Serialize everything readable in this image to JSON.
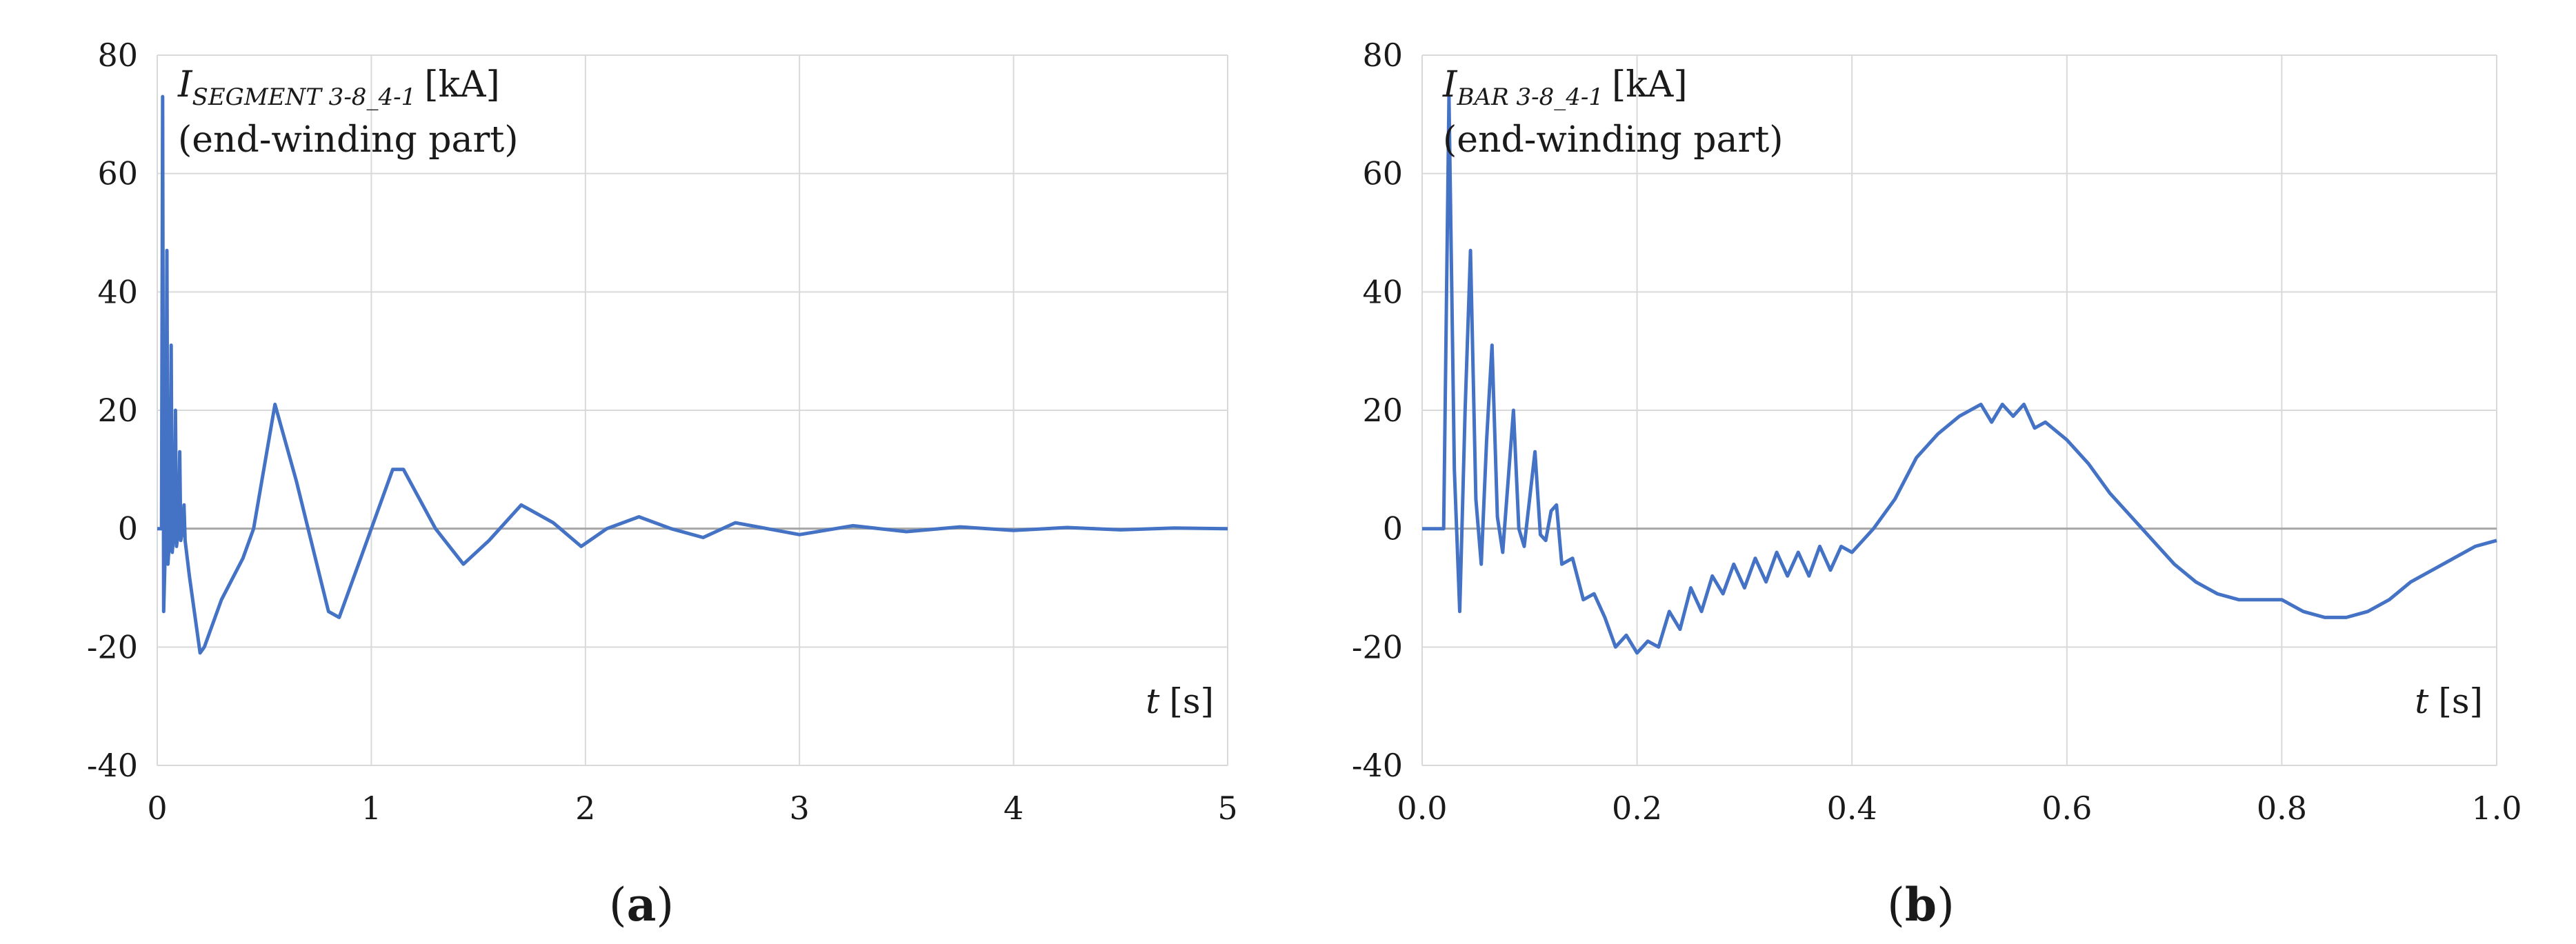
{
  "chart_data": [
    {
      "type": "line",
      "panel_label_prefix": "(",
      "panel_label_letter": "a",
      "panel_label_suffix": ")",
      "annotation": {
        "symbol": "I",
        "subscript": "SEGMENT 3-8_4-1",
        "unit": "[kA]",
        "line2": "(end-winding part)"
      },
      "xlabel": {
        "symbol": "t",
        "unit": "[s]"
      },
      "xlim": [
        0,
        5
      ],
      "ylim": [
        -40,
        80
      ],
      "xticks": [
        0,
        1,
        2,
        3,
        4,
        5
      ],
      "xtick_labels": [
        "0",
        "1",
        "2",
        "3",
        "4",
        "5"
      ],
      "yticks": [
        -40,
        -20,
        0,
        20,
        40,
        60,
        80
      ],
      "ytick_labels": [
        "-40",
        "-20",
        "0",
        "20",
        "40",
        "60",
        "80"
      ],
      "grid": true,
      "color": "#4472C4",
      "series": [
        {
          "x": [
            0,
            0.02,
            0.025,
            0.03,
            0.04,
            0.045,
            0.05,
            0.06,
            0.065,
            0.07,
            0.08,
            0.085,
            0.09,
            0.1,
            0.105,
            0.11,
            0.12,
            0.125,
            0.13,
            0.15,
            0.2,
            0.22,
            0.3,
            0.4,
            0.45,
            0.55,
            0.65,
            0.8,
            0.85,
            0.95,
            1.1,
            1.15,
            1.3,
            1.43,
            1.55,
            1.7,
            1.85,
            1.98,
            2.1,
            2.25,
            2.4,
            2.55,
            2.7,
            2.85,
            3.0,
            3.25,
            3.5,
            3.75,
            4.0,
            4.25,
            4.5,
            4.75,
            5.0
          ],
          "y": [
            0,
            0,
            73,
            -14,
            0,
            47,
            -6,
            0,
            31,
            -4,
            0,
            20,
            -3,
            0,
            13,
            -2,
            0,
            4,
            -2,
            -8,
            -21,
            -20,
            -12,
            -5,
            0,
            21,
            8,
            -14,
            -15,
            -5,
            10,
            10,
            0,
            -6,
            -2,
            4,
            1,
            -3,
            0,
            2,
            0,
            -1.5,
            1,
            0,
            -1,
            0.5,
            -0.5,
            0.3,
            -0.3,
            0.2,
            -0.2,
            0.1,
            0
          ]
        }
      ]
    },
    {
      "type": "line",
      "panel_label_prefix": "(",
      "panel_label_letter": "b",
      "panel_label_suffix": ")",
      "annotation": {
        "symbol": "I",
        "subscript": "BAR 3-8_4-1",
        "unit": "[kA]",
        "line2": "(end-winding part)"
      },
      "xlabel": {
        "symbol": "t",
        "unit": "[s]"
      },
      "xlim": [
        0,
        1.0
      ],
      "ylim": [
        -40,
        80
      ],
      "xticks": [
        0,
        0.2,
        0.4,
        0.6,
        0.8,
        1.0
      ],
      "xtick_labels": [
        "0.0",
        "0.2",
        "0.4",
        "0.6",
        "0.8",
        "1.0"
      ],
      "yticks": [
        -40,
        -20,
        0,
        20,
        40,
        60,
        80
      ],
      "ytick_labels": [
        "-40",
        "-20",
        "0",
        "20",
        "40",
        "60",
        "80"
      ],
      "grid": true,
      "color": "#4472C4",
      "series": [
        {
          "x": [
            0,
            0.02,
            0.025,
            0.03,
            0.035,
            0.04,
            0.045,
            0.05,
            0.055,
            0.06,
            0.065,
            0.07,
            0.075,
            0.08,
            0.085,
            0.09,
            0.095,
            0.1,
            0.105,
            0.11,
            0.115,
            0.12,
            0.125,
            0.13,
            0.14,
            0.15,
            0.16,
            0.17,
            0.18,
            0.19,
            0.2,
            0.21,
            0.22,
            0.23,
            0.24,
            0.25,
            0.26,
            0.27,
            0.28,
            0.29,
            0.3,
            0.31,
            0.32,
            0.33,
            0.34,
            0.35,
            0.36,
            0.37,
            0.38,
            0.39,
            0.4,
            0.42,
            0.44,
            0.46,
            0.48,
            0.5,
            0.52,
            0.53,
            0.54,
            0.55,
            0.56,
            0.57,
            0.58,
            0.6,
            0.62,
            0.64,
            0.66,
            0.68,
            0.7,
            0.72,
            0.74,
            0.76,
            0.78,
            0.8,
            0.82,
            0.84,
            0.86,
            0.88,
            0.9,
            0.92,
            0.94,
            0.96,
            0.98,
            1.0
          ],
          "y": [
            0,
            0,
            73,
            10,
            -14,
            20,
            47,
            5,
            -6,
            15,
            31,
            2,
            -4,
            8,
            20,
            0,
            -3,
            5,
            13,
            -1,
            -2,
            3,
            4,
            -6,
            -5,
            -12,
            -11,
            -15,
            -20,
            -18,
            -21,
            -19,
            -20,
            -14,
            -17,
            -10,
            -14,
            -8,
            -11,
            -6,
            -10,
            -5,
            -9,
            -4,
            -8,
            -4,
            -8,
            -3,
            -7,
            -3,
            -4,
            0,
            5,
            12,
            16,
            19,
            21,
            18,
            21,
            19,
            21,
            17,
            18,
            15,
            11,
            6,
            2,
            -2,
            -6,
            -9,
            -11,
            -12,
            -12,
            -12,
            -14,
            -15,
            -15,
            -14,
            -12,
            -9,
            -7,
            -5,
            -3,
            -2
          ]
        }
      ]
    }
  ]
}
